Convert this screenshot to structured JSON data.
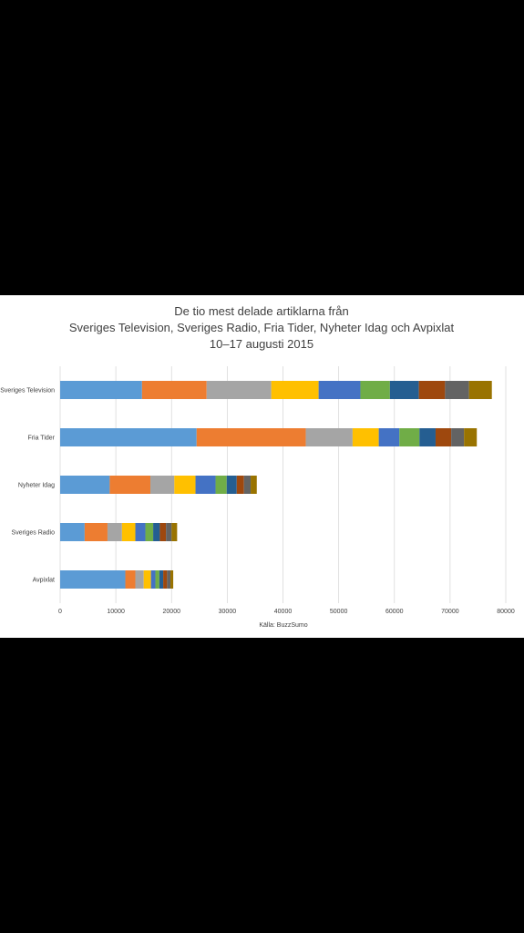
{
  "chart_data": {
    "type": "bar",
    "orientation": "horizontal",
    "stacked": true,
    "title_lines": [
      "De tio mest delade artiklarna från",
      "Sveriges Television, Sveriges Radio, Fria Tider, Nyheter Idag och Avpixlat",
      "10–17 augusti 2015"
    ],
    "categories": [
      "Sveriges Television",
      "Fria Tider",
      "Nyheter Idag",
      "Sveriges Radio",
      "Avpixlat"
    ],
    "x_ticks": [
      "0",
      "10000",
      "20000",
      "30000",
      "40000",
      "50000",
      "60000",
      "70000",
      "80000"
    ],
    "xlim": [
      0,
      80000
    ],
    "grid": true,
    "legend": "none",
    "source": "Källa: BuzzSumo",
    "segment_colors": [
      "#5B9BD5",
      "#ED7D31",
      "#A5A5A5",
      "#FFC000",
      "#4472C4",
      "#70AD47",
      "#255E91",
      "#9E480E",
      "#636363",
      "#997300"
    ],
    "values": [
      [
        14700,
        11600,
        11600,
        8500,
        7500,
        5300,
        5200,
        4700,
        4300,
        4100
      ],
      [
        24500,
        19600,
        8400,
        4700,
        3700,
        3600,
        2900,
        2800,
        2300,
        2300
      ],
      [
        8900,
        7300,
        4300,
        3800,
        3600,
        2000,
        1800,
        1300,
        1200,
        1100
      ],
      [
        4400,
        4100,
        2600,
        2400,
        1800,
        1400,
        1200,
        1100,
        1000,
        1000
      ],
      [
        11700,
        1800,
        1500,
        1300,
        800,
        700,
        700,
        700,
        600,
        500
      ]
    ]
  }
}
